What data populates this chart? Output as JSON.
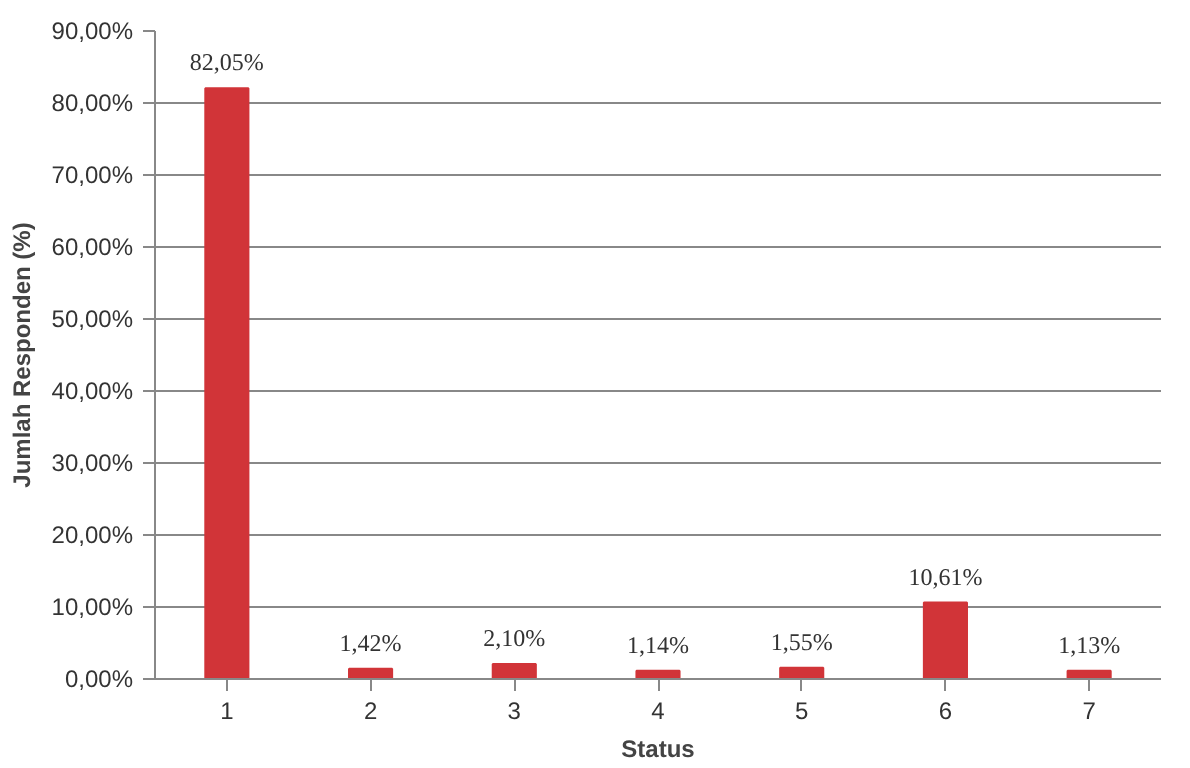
{
  "chart_data": {
    "type": "bar",
    "xlabel": "Status",
    "ylabel": "Jumlah Responden (%)",
    "categories": [
      "1",
      "2",
      "3",
      "4",
      "5",
      "6",
      "7"
    ],
    "values": [
      82.05,
      1.42,
      2.1,
      1.14,
      1.55,
      10.61,
      1.13
    ],
    "value_labels": [
      "82,05%",
      "1,42%",
      "2,10%",
      "1,14%",
      "1,55%",
      "10,61%",
      "1,13%"
    ],
    "color": "#d13438",
    "ylim": [
      0,
      90
    ],
    "yticks": [
      {
        "value": 0,
        "label": "0,00%"
      },
      {
        "value": 10,
        "label": "10,00%"
      },
      {
        "value": 20,
        "label": "20,00%"
      },
      {
        "value": 30,
        "label": "30,00%"
      },
      {
        "value": 40,
        "label": "40,00%"
      },
      {
        "value": 50,
        "label": "50,00%"
      },
      {
        "value": 60,
        "label": "60,00%"
      },
      {
        "value": 70,
        "label": "70,00%"
      },
      {
        "value": 80,
        "label": "80,00%"
      },
      {
        "value": 90,
        "label": "90,00%"
      }
    ],
    "grid": "y"
  }
}
